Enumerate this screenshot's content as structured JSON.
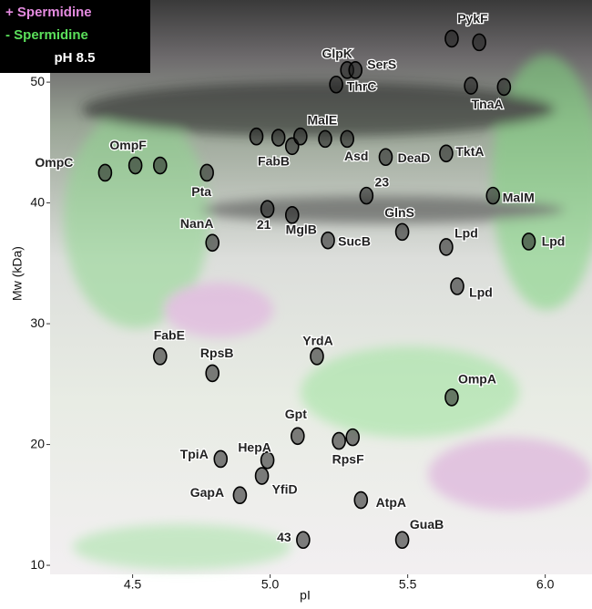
{
  "chart_data": {
    "type": "gel",
    "xlabel": "pI",
    "ylabel": "Mw (kDa)",
    "xlim": [
      4.2,
      6.17
    ],
    "ylim": [
      9.25,
      56.8
    ],
    "xticks": [
      4.5,
      {
        "value": 5,
        "label": "5.0"
      },
      5.5,
      {
        "value": 6,
        "label": "6.0"
      }
    ],
    "yticks": [
      10,
      20,
      30,
      40,
      50
    ],
    "legend_items": [
      {
        "text": "+ Spermidine",
        "color": "#e58be0"
      },
      {
        "text": "- Spermidine",
        "color": "#5be05b"
      },
      {
        "text": "pH 8.5",
        "color": "#ffffff"
      }
    ],
    "proteins": [
      {
        "name": "OmpC",
        "spots": [
          {
            "x": 4.4,
            "y": 42.5
          }
        ]
      },
      {
        "name": "OmpF",
        "spots": [
          {
            "x": 4.51,
            "y": 43.1
          },
          {
            "x": 4.6,
            "y": 43.1
          }
        ]
      },
      {
        "name": "Pta",
        "spots": [
          {
            "x": 4.77,
            "y": 42.5
          }
        ]
      },
      {
        "name": "FabB",
        "spots": [
          {
            "x": 4.95,
            "y": 45.5
          },
          {
            "x": 5.03,
            "y": 45.4
          },
          {
            "x": 5.08,
            "y": 44.7
          }
        ]
      },
      {
        "name": "MalE",
        "spots": [
          {
            "x": 5.11,
            "y": 45.5
          },
          {
            "x": 5.2,
            "y": 45.3
          }
        ]
      },
      {
        "name": "Asd",
        "spots": [
          {
            "x": 5.28,
            "y": 45.3
          }
        ]
      },
      {
        "name": "GlpK",
        "spots": [
          {
            "x": 5.28,
            "y": 51.0
          }
        ]
      },
      {
        "name": "SerS",
        "spots": [
          {
            "x": 5.31,
            "y": 51.0
          }
        ]
      },
      {
        "name": "ThrC",
        "spots": [
          {
            "x": 5.24,
            "y": 49.8
          }
        ]
      },
      {
        "name": "PykF",
        "spots": [
          {
            "x": 5.66,
            "y": 53.6
          },
          {
            "x": 5.76,
            "y": 53.3
          }
        ]
      },
      {
        "name": "TnaA",
        "spots": [
          {
            "x": 5.73,
            "y": 49.7
          },
          {
            "x": 5.85,
            "y": 49.6
          }
        ]
      },
      {
        "name": "DeaD",
        "spots": [
          {
            "x": 5.42,
            "y": 43.8
          }
        ]
      },
      {
        "name": "TktA",
        "spots": [
          {
            "x": 5.64,
            "y": 44.1
          }
        ]
      },
      {
        "name": "23",
        "spots": [
          {
            "x": 5.35,
            "y": 40.6
          }
        ]
      },
      {
        "name": "MalM",
        "spots": [
          {
            "x": 5.81,
            "y": 40.6
          }
        ]
      },
      {
        "name": "21",
        "spots": [
          {
            "x": 4.99,
            "y": 39.5
          }
        ]
      },
      {
        "name": "MglB",
        "spots": [
          {
            "x": 5.08,
            "y": 39.0
          }
        ]
      },
      {
        "name": "NanA",
        "spots": [
          {
            "x": 4.79,
            "y": 36.7
          }
        ]
      },
      {
        "name": "SucB",
        "spots": [
          {
            "x": 5.21,
            "y": 36.9
          }
        ]
      },
      {
        "name": "GlnS",
        "spots": [
          {
            "x": 5.48,
            "y": 37.6
          }
        ]
      },
      {
        "name": "Lpd",
        "spots": [
          {
            "x": 5.64,
            "y": 36.35
          }
        ]
      },
      {
        "name": "Lpd",
        "spots": [
          {
            "x": 5.94,
            "y": 36.8
          }
        ]
      },
      {
        "name": "Lpd",
        "spots": [
          {
            "x": 5.68,
            "y": 33.1
          }
        ]
      },
      {
        "name": "FabE",
        "spots": [
          {
            "x": 4.6,
            "y": 27.3
          }
        ]
      },
      {
        "name": "RpsB",
        "spots": [
          {
            "x": 4.79,
            "y": 25.9
          }
        ]
      },
      {
        "name": "YrdA",
        "spots": [
          {
            "x": 5.17,
            "y": 27.3
          }
        ]
      },
      {
        "name": "OmpA",
        "spots": [
          {
            "x": 5.66,
            "y": 23.9
          }
        ]
      },
      {
        "name": "Gpt",
        "spots": [
          {
            "x": 5.1,
            "y": 20.7
          }
        ]
      },
      {
        "name": "RpsF",
        "spots": [
          {
            "x": 5.25,
            "y": 20.3
          },
          {
            "x": 5.3,
            "y": 20.6
          }
        ]
      },
      {
        "name": "TpiA",
        "spots": [
          {
            "x": 4.82,
            "y": 18.8
          }
        ]
      },
      {
        "name": "HepA",
        "spots": [
          {
            "x": 4.99,
            "y": 18.7
          }
        ]
      },
      {
        "name": "YfiD",
        "spots": [
          {
            "x": 4.97,
            "y": 17.4
          }
        ]
      },
      {
        "name": "GapA",
        "spots": [
          {
            "x": 4.89,
            "y": 15.8
          }
        ]
      },
      {
        "name": "AtpA",
        "spots": [
          {
            "x": 5.33,
            "y": 15.4
          }
        ]
      },
      {
        "name": "GuaB",
        "spots": [
          {
            "x": 5.48,
            "y": 12.1
          }
        ]
      },
      {
        "name": "43",
        "spots": [
          {
            "x": 5.12,
            "y": 12.1
          }
        ]
      }
    ]
  }
}
